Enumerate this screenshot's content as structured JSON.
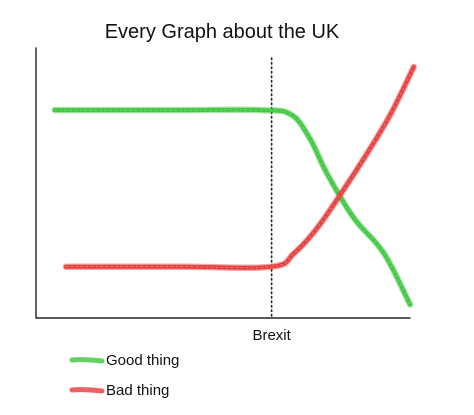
{
  "chart_data": {
    "type": "line",
    "title": "Every Graph about the UK",
    "xlabel": "",
    "ylabel": "",
    "xlim": [
      0,
      10
    ],
    "ylim": [
      0,
      10
    ],
    "x_ticks": [
      {
        "x": 6.3,
        "label": "Brexit"
      }
    ],
    "markers": [
      {
        "type": "vertical-dotted-line",
        "x": 6.3
      }
    ],
    "grid": false,
    "legend_position": "bottom-left",
    "series": [
      {
        "name": "Good thing",
        "color": "#3cc53c",
        "points": [
          [
            0.5,
            7.7
          ],
          [
            2.0,
            7.7
          ],
          [
            4.0,
            7.7
          ],
          [
            6.0,
            7.7
          ],
          [
            6.8,
            7.55
          ],
          [
            7.3,
            6.7
          ],
          [
            7.8,
            5.3
          ],
          [
            8.5,
            3.7
          ],
          [
            9.3,
            2.4
          ],
          [
            10.0,
            0.5
          ]
        ]
      },
      {
        "name": "Bad thing",
        "color": "#e53b3b",
        "points": [
          [
            0.8,
            1.9
          ],
          [
            2.0,
            1.9
          ],
          [
            4.0,
            1.9
          ],
          [
            6.3,
            1.9
          ],
          [
            6.9,
            2.4
          ],
          [
            7.5,
            3.3
          ],
          [
            8.2,
            4.7
          ],
          [
            8.9,
            6.2
          ],
          [
            9.5,
            7.6
          ],
          [
            10.1,
            9.3
          ]
        ]
      }
    ]
  }
}
